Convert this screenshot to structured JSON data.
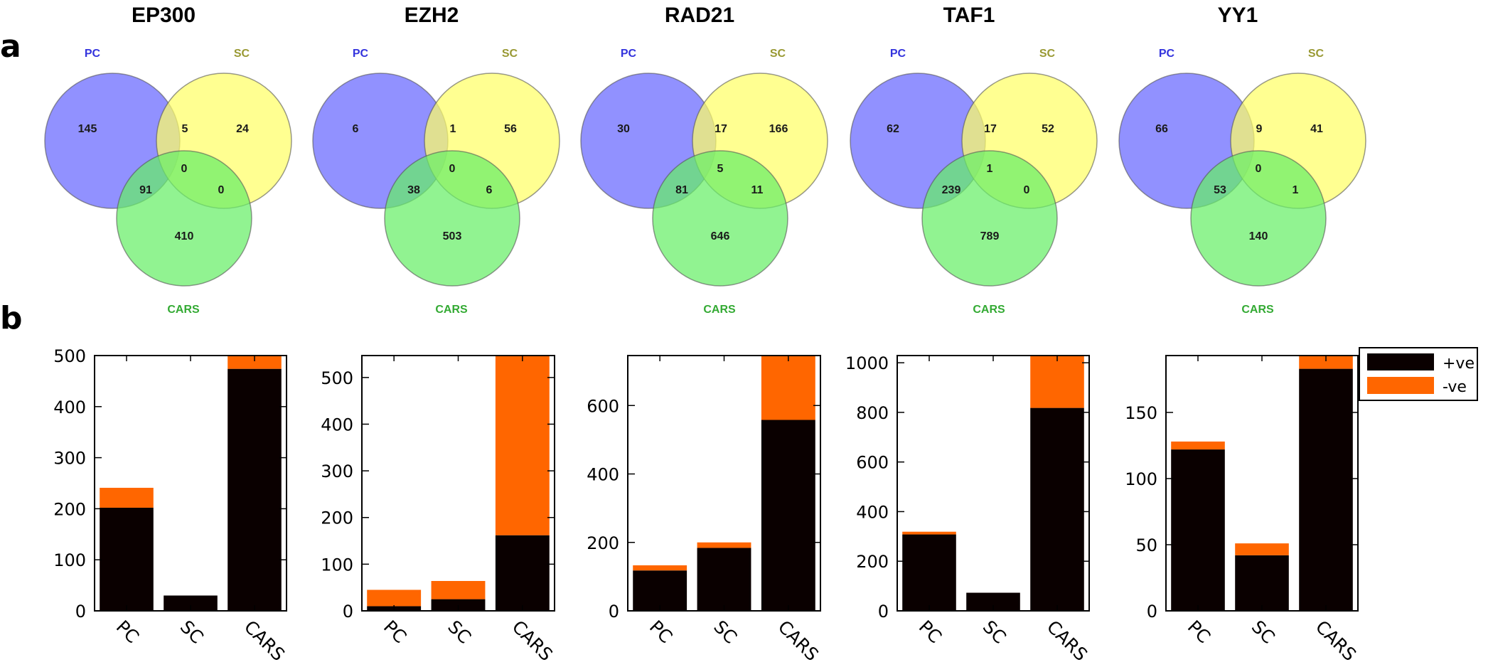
{
  "panel_labels": {
    "a": "a",
    "b": "b"
  },
  "colors": {
    "pc": "#6666ff",
    "sc": "#ffff66",
    "cars": "#66ee66",
    "pc_label": "#3333dd",
    "sc_label": "#999933",
    "cars_label": "#33aa33",
    "positive": "#0a0000",
    "negative": "#ff6600"
  },
  "legend": {
    "positive_label": "+ve",
    "negative_label": "-ve"
  },
  "chart_data": [
    {
      "type": "bar",
      "title": "EP300",
      "venn": {
        "set_labels": [
          "PC",
          "SC",
          "CARS"
        ],
        "pc_only": "145",
        "sc_only": "24",
        "cars_only": "410",
        "pc_sc": "5",
        "pc_cars": "91",
        "sc_cars": "0",
        "all": "0"
      },
      "categories": [
        "PC",
        "SC",
        "CARS"
      ],
      "series": [
        {
          "name": "+ve",
          "values": [
            202,
            30,
            474
          ]
        },
        {
          "name": "-ve",
          "values": [
            39,
            0,
            26
          ]
        }
      ],
      "ylim": [
        0,
        500
      ],
      "yticks": [
        "0",
        "100",
        "200",
        "300",
        "400",
        "500"
      ]
    },
    {
      "type": "bar",
      "title": "EZH2",
      "venn": {
        "set_labels": [
          "PC",
          "SC",
          "CARS"
        ],
        "pc_only": "6",
        "sc_only": "56",
        "cars_only": "503",
        "pc_sc": "1",
        "pc_cars": "38",
        "sc_cars": "6",
        "all": "0"
      },
      "categories": [
        "PC",
        "SC",
        "CARS"
      ],
      "series": [
        {
          "name": "+ve",
          "values": [
            10,
            25,
            162
          ]
        },
        {
          "name": "-ve",
          "values": [
            35,
            39,
            385
          ]
        }
      ],
      "ylim": [
        0,
        547
      ],
      "yticks": [
        "0",
        "100",
        "200",
        "300",
        "400",
        "500"
      ]
    },
    {
      "type": "bar",
      "title": "RAD21",
      "venn": {
        "set_labels": [
          "PC",
          "SC",
          "CARS"
        ],
        "pc_only": "30",
        "sc_only": "166",
        "cars_only": "646",
        "pc_sc": "17",
        "pc_cars": "81",
        "sc_cars": "11",
        "all": "5"
      },
      "categories": [
        "PC",
        "SC",
        "CARS"
      ],
      "series": [
        {
          "name": "+ve",
          "values": [
            118,
            184,
            558
          ]
        },
        {
          "name": "-ve",
          "values": [
            15,
            16,
            188
          ]
        }
      ],
      "ylim": [
        0,
        746
      ],
      "yticks": [
        "0",
        "200",
        "400",
        "600"
      ]
    },
    {
      "type": "bar",
      "title": "TAF1",
      "venn": {
        "set_labels": [
          "PC",
          "SC",
          "CARS"
        ],
        "pc_only": "62",
        "sc_only": "52",
        "cars_only": "789",
        "pc_sc": "17",
        "pc_cars": "239",
        "sc_cars": "0",
        "all": "1"
      },
      "categories": [
        "PC",
        "SC",
        "CARS"
      ],
      "series": [
        {
          "name": "+ve",
          "values": [
            308,
            73,
            818
          ]
        },
        {
          "name": "-ve",
          "values": [
            11,
            0,
            211
          ]
        }
      ],
      "ylim": [
        0,
        1029
      ],
      "yticks": [
        "0",
        "200",
        "400",
        "600",
        "800",
        "1000"
      ]
    },
    {
      "type": "bar",
      "title": "YY1",
      "venn": {
        "set_labels": [
          "PC",
          "SC",
          "CARS"
        ],
        "pc_only": "66",
        "sc_only": "41",
        "cars_only": "140",
        "pc_sc": "9",
        "pc_cars": "53",
        "sc_cars": "1",
        "all": "0"
      },
      "categories": [
        "PC",
        "SC",
        "CARS"
      ],
      "series": [
        {
          "name": "+ve",
          "values": [
            122,
            42,
            183
          ]
        },
        {
          "name": "-ve",
          "values": [
            6,
            9,
            10
          ]
        }
      ],
      "ylim": [
        0,
        193
      ],
      "yticks": [
        "0",
        "50",
        "100",
        "150"
      ]
    }
  ]
}
